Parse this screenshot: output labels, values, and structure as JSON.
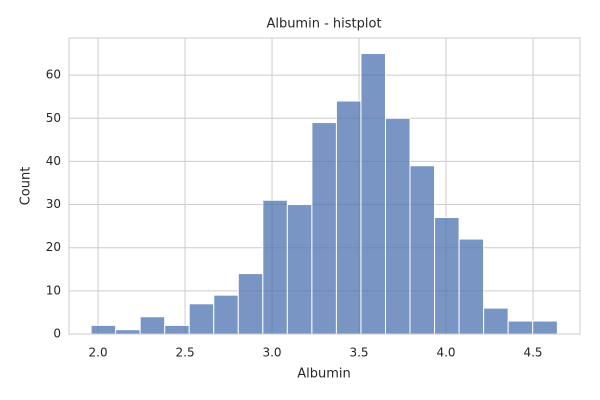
{
  "chart_data": {
    "type": "histogram",
    "title": "Albumin - histplot",
    "x_label": "Albumin",
    "y_label": "Count",
    "bins": [
      1.96,
      2.101,
      2.242,
      2.383,
      2.524,
      2.665,
      2.806,
      2.947,
      3.088,
      3.229,
      3.37,
      3.511,
      3.652,
      3.793,
      3.934,
      4.075,
      4.216,
      4.357,
      4.498,
      4.64
    ],
    "counts": [
      2,
      1,
      4,
      2,
      7,
      9,
      14,
      31,
      30,
      49,
      54,
      65,
      50,
      39,
      27,
      22,
      6,
      3,
      3
    ],
    "color": "#4c72b0",
    "xlim": [
      1.833,
      4.77
    ],
    "ylim": [
      0,
      68.6
    ],
    "xticks": [
      {
        "value": 2,
        "label": "2.0"
      },
      2.5,
      {
        "value": 3,
        "label": "3.0"
      },
      3.5,
      {
        "value": 4,
        "label": "4.0"
      },
      4.5
    ],
    "yticks": [
      0,
      10,
      20,
      30,
      40,
      50,
      60
    ],
    "grid": true
  }
}
